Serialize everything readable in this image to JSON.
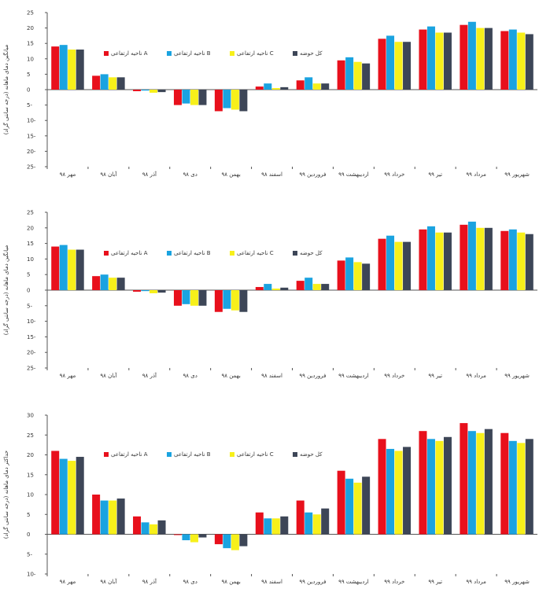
{
  "chart_data": [
    {
      "type": "bar",
      "ylabel": "میانگین دمای ماهانه (درجه سانتی گراد)",
      "ylim": [
        -25,
        25
      ],
      "yticks": [
        25,
        20,
        15,
        10,
        5,
        0,
        -5,
        -10,
        -15,
        -20,
        -25
      ],
      "categories": [
        "مهر ۹۸",
        "آبان ۹۸",
        "آذر ۹۸",
        "دی ۹۸",
        "بهمن ۹۸",
        "اسفند ۹۸",
        "فروردین ۹۹",
        "اردیبهشت ۹۹",
        "خرداد ۹۹",
        "تیر ۹۹",
        "مرداد ۹۹",
        "شهریور ۹۹"
      ],
      "legend_position": "top-center",
      "series": [
        {
          "name": "ناحیه ارتفاعی A",
          "color": "#e8101c",
          "values": [
            14,
            4.5,
            -0.5,
            -5,
            -7,
            1,
            3,
            9.5,
            16.5,
            19.5,
            21,
            19
          ]
        },
        {
          "name": "ناحیه ارتفاعی B",
          "color": "#1aa3e0",
          "values": [
            14.5,
            5,
            -0.3,
            -4.5,
            -6,
            2,
            4,
            10.5,
            17.5,
            20.5,
            22,
            19.5
          ]
        },
        {
          "name": "ناحیه ارتفاعی C",
          "color": "#f7f01a",
          "values": [
            13,
            4,
            -1,
            -5,
            -6.5,
            0.5,
            2,
            9,
            15.5,
            18.5,
            20,
            18.5
          ]
        },
        {
          "name": "کل حوضه",
          "color": "#3d4657",
          "values": [
            13,
            4,
            -0.8,
            -5,
            -7,
            0.8,
            2,
            8.5,
            15.5,
            18.5,
            20,
            18
          ]
        }
      ]
    },
    {
      "type": "bar",
      "ylabel": "میانگین دمای ماهانه (درجه سانتی گراد)",
      "ylim": [
        -25,
        25
      ],
      "yticks": [
        25,
        20,
        15,
        10,
        5,
        0,
        -5,
        -10,
        -15,
        -20,
        -25
      ],
      "categories": [
        "مهر ۹۸",
        "آبان ۹۸",
        "آذر ۹۸",
        "دی ۹۸",
        "بهمن ۹۸",
        "اسفند ۹۸",
        "فروردین ۹۹",
        "اردیبهشت ۹۹",
        "خرداد ۹۹",
        "تیر ۹۹",
        "مرداد ۹۹",
        "شهریور ۹۹"
      ],
      "legend_position": "top-center",
      "series": [
        {
          "name": "ناحیه ارتفاعی A",
          "color": "#e8101c",
          "values": [
            14,
            4.5,
            -0.5,
            -5,
            -7,
            1,
            3,
            9.5,
            16.5,
            19.5,
            21,
            19
          ]
        },
        {
          "name": "ناحیه ارتفاعی B",
          "color": "#1aa3e0",
          "values": [
            14.5,
            5,
            -0.3,
            -4.5,
            -6,
            2,
            4,
            10.5,
            17.5,
            20.5,
            22,
            19.5
          ]
        },
        {
          "name": "ناحیه ارتفاعی C",
          "color": "#f7f01a",
          "values": [
            13,
            4,
            -1,
            -5,
            -6.5,
            0.5,
            2,
            9,
            15.5,
            18.5,
            20,
            18.5
          ]
        },
        {
          "name": "کل حوضه",
          "color": "#3d4657",
          "values": [
            13,
            4,
            -0.8,
            -5,
            -7,
            0.8,
            2,
            8.5,
            15.5,
            18.5,
            20,
            18
          ]
        }
      ]
    },
    {
      "type": "bar",
      "ylabel": "حداکثر دمای ماهانه (درجه سانتی گراد)",
      "ylim": [
        -10,
        30
      ],
      "yticks": [
        30,
        25,
        20,
        15,
        10,
        5,
        0,
        -5,
        -10
      ],
      "categories": [
        "مهر ۹۸",
        "آبان ۹۸",
        "آذر ۹۸",
        "دی ۹۸",
        "بهمن ۹۸",
        "اسفند ۹۸",
        "فروردین ۹۹",
        "اردیبهشت ۹۹",
        "خرداد ۹۹",
        "تیر ۹۹",
        "مرداد ۹۹",
        "شهریور ۹۹"
      ],
      "legend_position": "top-center",
      "series": [
        {
          "name": "ناحیه ارتفاعی A",
          "color": "#e8101c",
          "values": [
            21,
            10,
            4.5,
            -0.2,
            -2.5,
            5.5,
            8.5,
            16,
            24,
            26,
            28,
            25.5
          ]
        },
        {
          "name": "ناحیه ارتفاعی B",
          "color": "#1aa3e0",
          "values": [
            19,
            8.5,
            3,
            -1.5,
            -3.5,
            4,
            5.5,
            14,
            21.5,
            24,
            26,
            23.5
          ]
        },
        {
          "name": "ناحیه ارتفاعی C",
          "color": "#f7f01a",
          "values": [
            18.5,
            8.5,
            2.5,
            -2,
            -4,
            4,
            5,
            13,
            21,
            23.5,
            25.5,
            23
          ]
        },
        {
          "name": "کل حوضه",
          "color": "#3d4657",
          "values": [
            19.5,
            9,
            3.5,
            -0.8,
            -3,
            4.5,
            6.5,
            14.5,
            22,
            24.5,
            26.5,
            24
          ]
        }
      ]
    }
  ]
}
